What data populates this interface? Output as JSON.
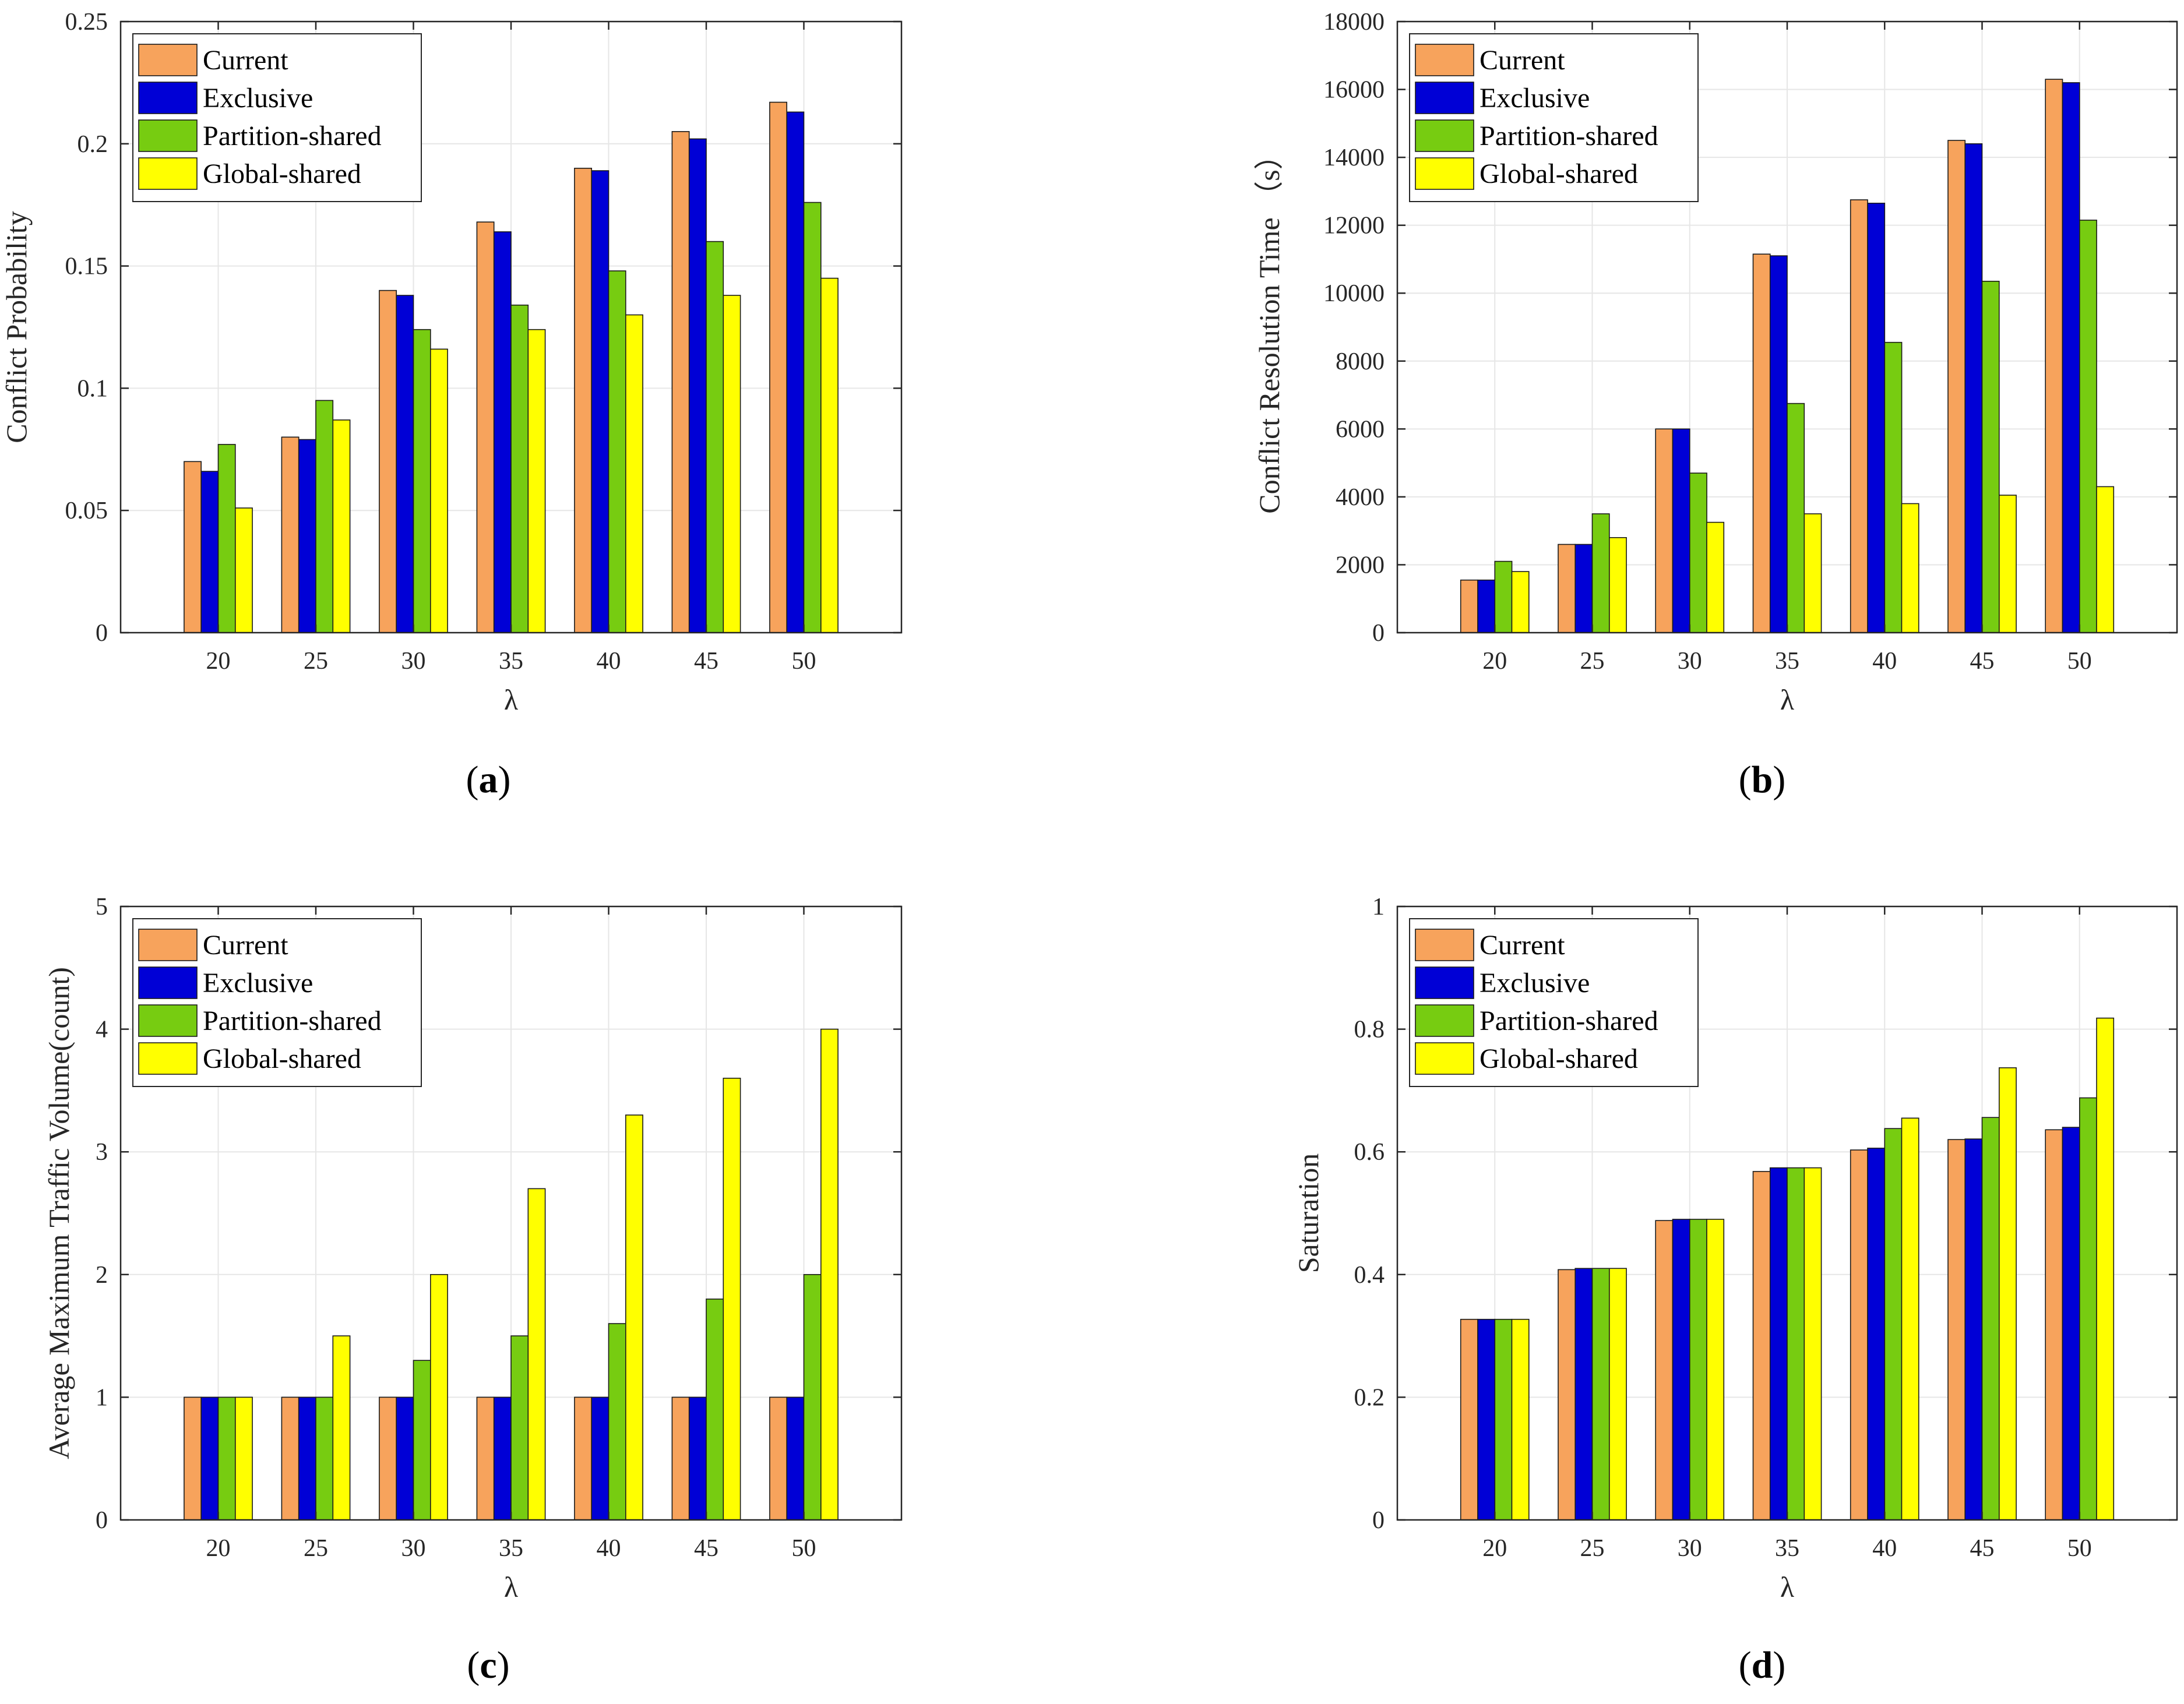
{
  "colors": {
    "Current": "#F7A35C",
    "Exclusive": "#0000D6",
    "Partition-shared": "#77CC11",
    "Global-shared": "#FFFF00",
    "grid": "#E6E6E6",
    "axis": "#262626"
  },
  "chart_data": [
    {
      "id": "a",
      "type": "bar",
      "caption_open": "(",
      "caption_letter": "a",
      "caption_close": ")",
      "categories": [
        "20",
        "25",
        "30",
        "35",
        "40",
        "45",
        "50"
      ],
      "xlabel": "λ",
      "ylabel": "Conflict Probability",
      "ylim": [
        0,
        0.25
      ],
      "yticks": [
        0,
        0.05,
        0.1,
        0.15,
        0.2,
        0.25
      ],
      "ytick_labels": [
        "0",
        "0.05",
        "0.1",
        "0.15",
        "0.2",
        "0.25"
      ],
      "grid": true,
      "legend": "top-left",
      "series": [
        {
          "name": "Current",
          "values": [
            0.07,
            0.08,
            0.14,
            0.168,
            0.19,
            0.205,
            0.217
          ]
        },
        {
          "name": "Exclusive",
          "values": [
            0.066,
            0.079,
            0.138,
            0.164,
            0.189,
            0.202,
            0.213
          ]
        },
        {
          "name": "Partition-shared",
          "values": [
            0.077,
            0.095,
            0.124,
            0.134,
            0.148,
            0.16,
            0.176
          ]
        },
        {
          "name": "Global-shared",
          "values": [
            0.051,
            0.087,
            0.116,
            0.124,
            0.13,
            0.138,
            0.145
          ]
        }
      ]
    },
    {
      "id": "b",
      "type": "bar",
      "caption_open": "(",
      "caption_letter": "b",
      "caption_close": ")",
      "categories": [
        "20",
        "25",
        "30",
        "35",
        "40",
        "45",
        "50"
      ],
      "xlabel": "λ",
      "ylabel": "Conflict Resolution Time （s）",
      "ylim": [
        0,
        18000
      ],
      "yticks": [
        0,
        2000,
        4000,
        6000,
        8000,
        10000,
        12000,
        14000,
        16000,
        18000
      ],
      "ytick_labels": [
        "0",
        "2000",
        "4000",
        "6000",
        "8000",
        "10000",
        "12000",
        "14000",
        "16000",
        "18000"
      ],
      "grid": true,
      "legend": "top-left",
      "series": [
        {
          "name": "Current",
          "values": [
            1550,
            2600,
            6000,
            11150,
            12750,
            14500,
            16300
          ]
        },
        {
          "name": "Exclusive",
          "values": [
            1550,
            2600,
            6000,
            11100,
            12650,
            14400,
            16200
          ]
        },
        {
          "name": "Partition-shared",
          "values": [
            2100,
            3500,
            4700,
            6750,
            8550,
            10350,
            12150
          ]
        },
        {
          "name": "Global-shared",
          "values": [
            1800,
            2800,
            3250,
            3500,
            3800,
            4050,
            4300
          ]
        }
      ]
    },
    {
      "id": "c",
      "type": "bar",
      "caption_open": "(",
      "caption_letter": "c",
      "caption_close": ")",
      "categories": [
        "20",
        "25",
        "30",
        "35",
        "40",
        "45",
        "50"
      ],
      "xlabel": "λ",
      "ylabel": "Average Maximum Traffic Volume(count)",
      "ylim": [
        0,
        5
      ],
      "yticks": [
        0,
        1,
        2,
        3,
        4,
        5
      ],
      "ytick_labels": [
        "0",
        "1",
        "2",
        "3",
        "4",
        "5"
      ],
      "grid": true,
      "legend": "top-left",
      "series": [
        {
          "name": "Current",
          "values": [
            1,
            1,
            1,
            1,
            1,
            1,
            1
          ]
        },
        {
          "name": "Exclusive",
          "values": [
            1,
            1,
            1,
            1,
            1,
            1,
            1
          ]
        },
        {
          "name": "Partition-shared",
          "values": [
            1,
            1,
            1.3,
            1.5,
            1.6,
            1.8,
            2.0
          ]
        },
        {
          "name": "Global-shared",
          "values": [
            1,
            1.5,
            2.0,
            2.7,
            3.3,
            3.6,
            4.0
          ]
        }
      ]
    },
    {
      "id": "d",
      "type": "bar",
      "caption_open": "(",
      "caption_letter": "d",
      "caption_close": ")",
      "categories": [
        "20",
        "25",
        "30",
        "35",
        "40",
        "45",
        "50"
      ],
      "xlabel": "λ",
      "ylabel": "Saturation",
      "ylim": [
        0,
        1
      ],
      "yticks": [
        0,
        0.2,
        0.4,
        0.6,
        0.8,
        1
      ],
      "ytick_labels": [
        "0",
        "0.2",
        "0.4",
        "0.6",
        "0.8",
        "1"
      ],
      "grid": true,
      "legend": "top-left",
      "series": [
        {
          "name": "Current",
          "values": [
            0.327,
            0.408,
            0.488,
            0.568,
            0.603,
            0.62,
            0.636
          ]
        },
        {
          "name": "Exclusive",
          "values": [
            0.327,
            0.41,
            0.49,
            0.574,
            0.606,
            0.621,
            0.64
          ]
        },
        {
          "name": "Partition-shared",
          "values": [
            0.327,
            0.41,
            0.49,
            0.574,
            0.638,
            0.656,
            0.688
          ]
        },
        {
          "name": "Global-shared",
          "values": [
            0.327,
            0.41,
            0.49,
            0.574,
            0.655,
            0.737,
            0.818
          ]
        }
      ]
    }
  ]
}
